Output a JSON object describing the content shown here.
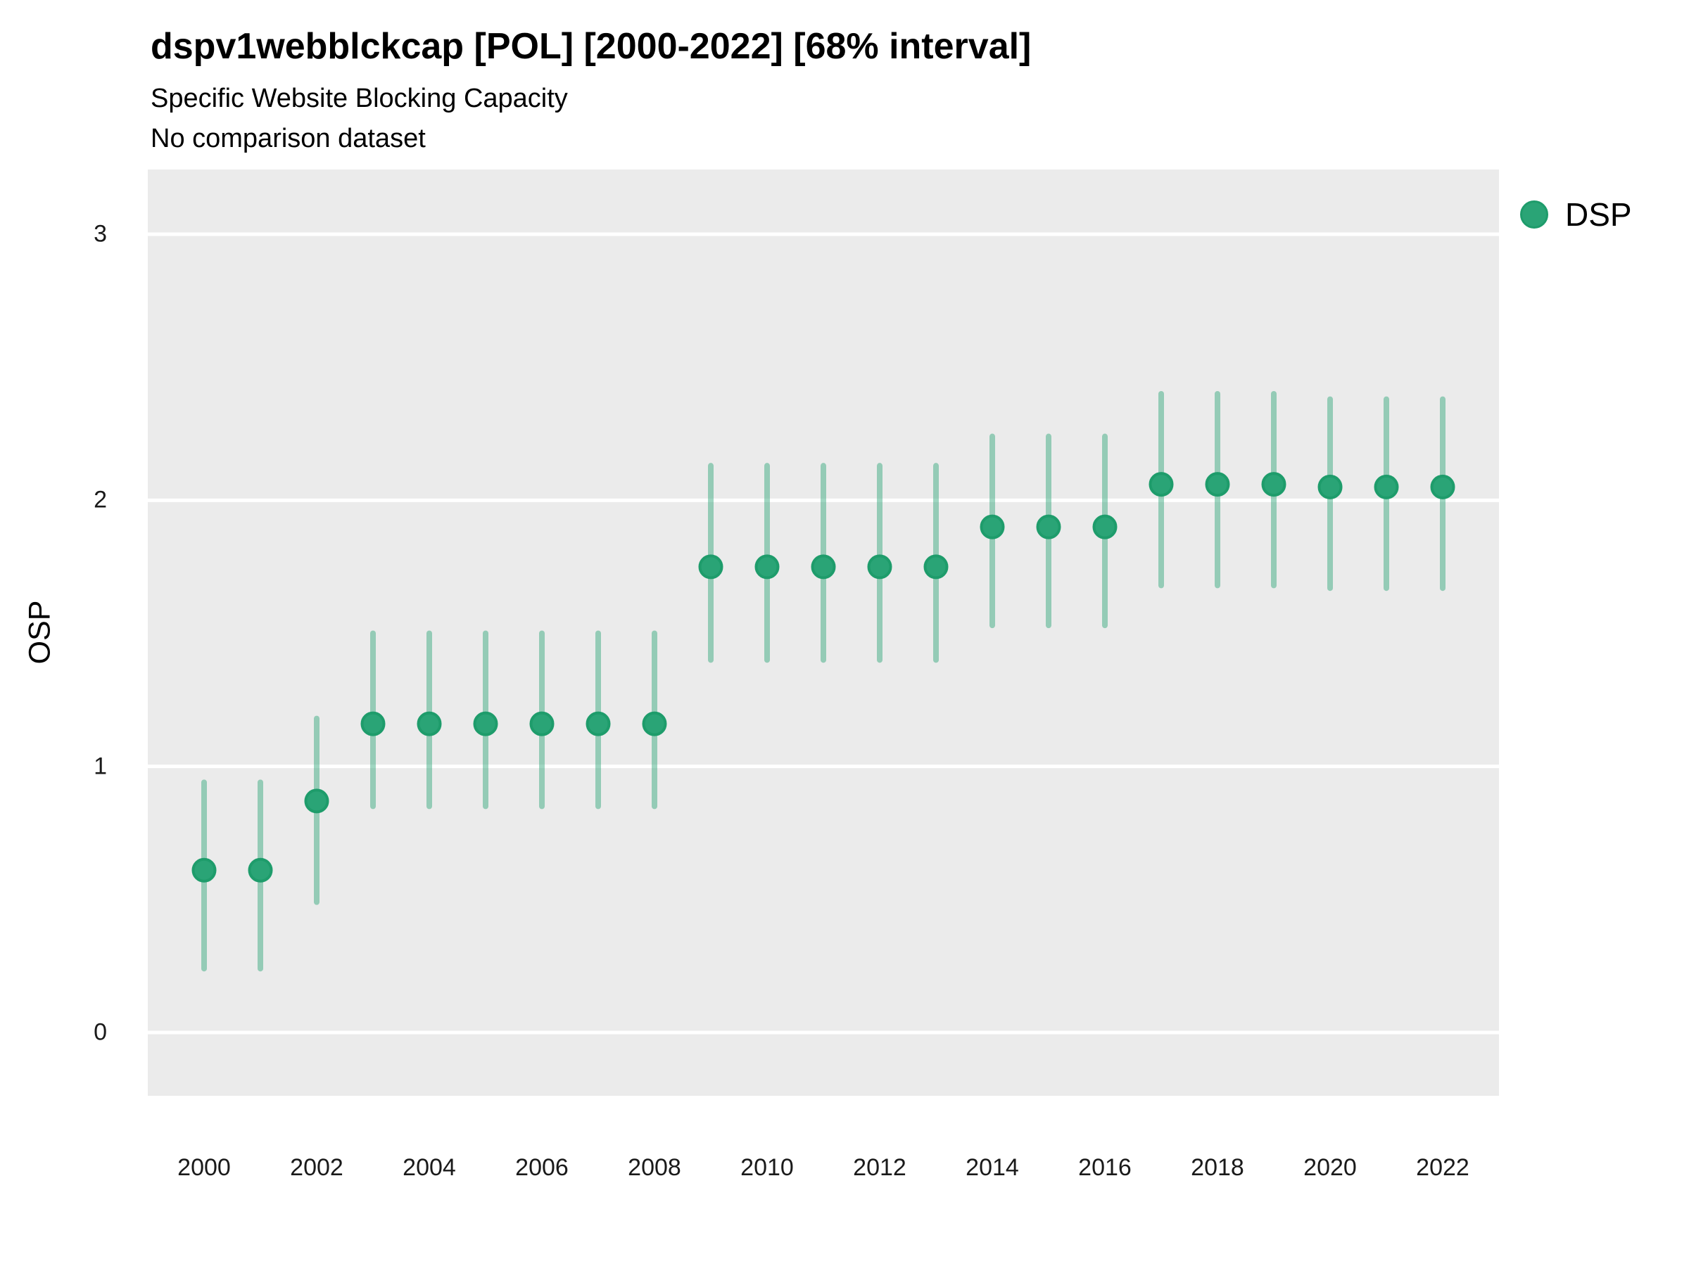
{
  "header": {
    "title": "dspv1webblckcap [POL] [2000-2022] [68% interval]",
    "subtitle_line1": "Specific Website Blocking Capacity",
    "subtitle_line2": "No comparison dataset"
  },
  "y_axis": {
    "label": "OSP",
    "tick_labels": [
      "0",
      "1",
      "2",
      "3"
    ],
    "tick_values": [
      0,
      1,
      2,
      3
    ]
  },
  "x_axis": {
    "tick_labels": [
      "2000",
      "2002",
      "2004",
      "2006",
      "2008",
      "2010",
      "2012",
      "2014",
      "2016",
      "2018",
      "2020",
      "2022"
    ],
    "tick_values": [
      2000,
      2002,
      2004,
      2006,
      2008,
      2010,
      2012,
      2014,
      2016,
      2018,
      2020,
      2022
    ]
  },
  "legend": {
    "label": "DSP",
    "position": "right"
  },
  "colors": {
    "point_fill": "#2AA476",
    "point_stroke": "#1E9C6B",
    "interval_bar": "rgba(42,164,118,0.45)",
    "panel_background": "#EBEBEB",
    "gridline": "#FFFFFF"
  },
  "chart_data": {
    "type": "scatter",
    "title": "dspv1webblckcap [POL] [2000-2022] [68% interval]",
    "subtitle": "Specific Website Blocking Capacity / No comparison dataset",
    "xlabel": "",
    "ylabel": "OSP",
    "interval_label": "68% interval",
    "legend_position": "right",
    "grid": "horizontal-major-only",
    "xlim": [
      1999,
      2023
    ],
    "ylim": [
      -0.25,
      3.24
    ],
    "series": [
      {
        "name": "DSP",
        "x": [
          2000,
          2001,
          2002,
          2003,
          2004,
          2005,
          2006,
          2007,
          2008,
          2009,
          2010,
          2011,
          2012,
          2013,
          2014,
          2015,
          2016,
          2017,
          2018,
          2019,
          2020,
          2021,
          2022
        ],
        "y": [
          0.61,
          0.61,
          0.87,
          1.16,
          1.16,
          1.16,
          1.16,
          1.16,
          1.16,
          1.75,
          1.75,
          1.75,
          1.75,
          1.75,
          1.9,
          1.9,
          1.9,
          2.06,
          2.06,
          2.06,
          2.05,
          2.05,
          2.05
        ],
        "y_lo": [
          0.24,
          0.24,
          0.49,
          0.85,
          0.85,
          0.85,
          0.85,
          0.85,
          0.85,
          1.4,
          1.4,
          1.4,
          1.4,
          1.4,
          1.53,
          1.53,
          1.53,
          1.68,
          1.68,
          1.68,
          1.67,
          1.67,
          1.67
        ],
        "y_hi": [
          0.94,
          0.94,
          1.18,
          1.5,
          1.5,
          1.5,
          1.5,
          1.5,
          1.5,
          2.13,
          2.13,
          2.13,
          2.13,
          2.13,
          2.24,
          2.24,
          2.24,
          2.4,
          2.4,
          2.4,
          2.38,
          2.38,
          2.38
        ]
      }
    ]
  }
}
